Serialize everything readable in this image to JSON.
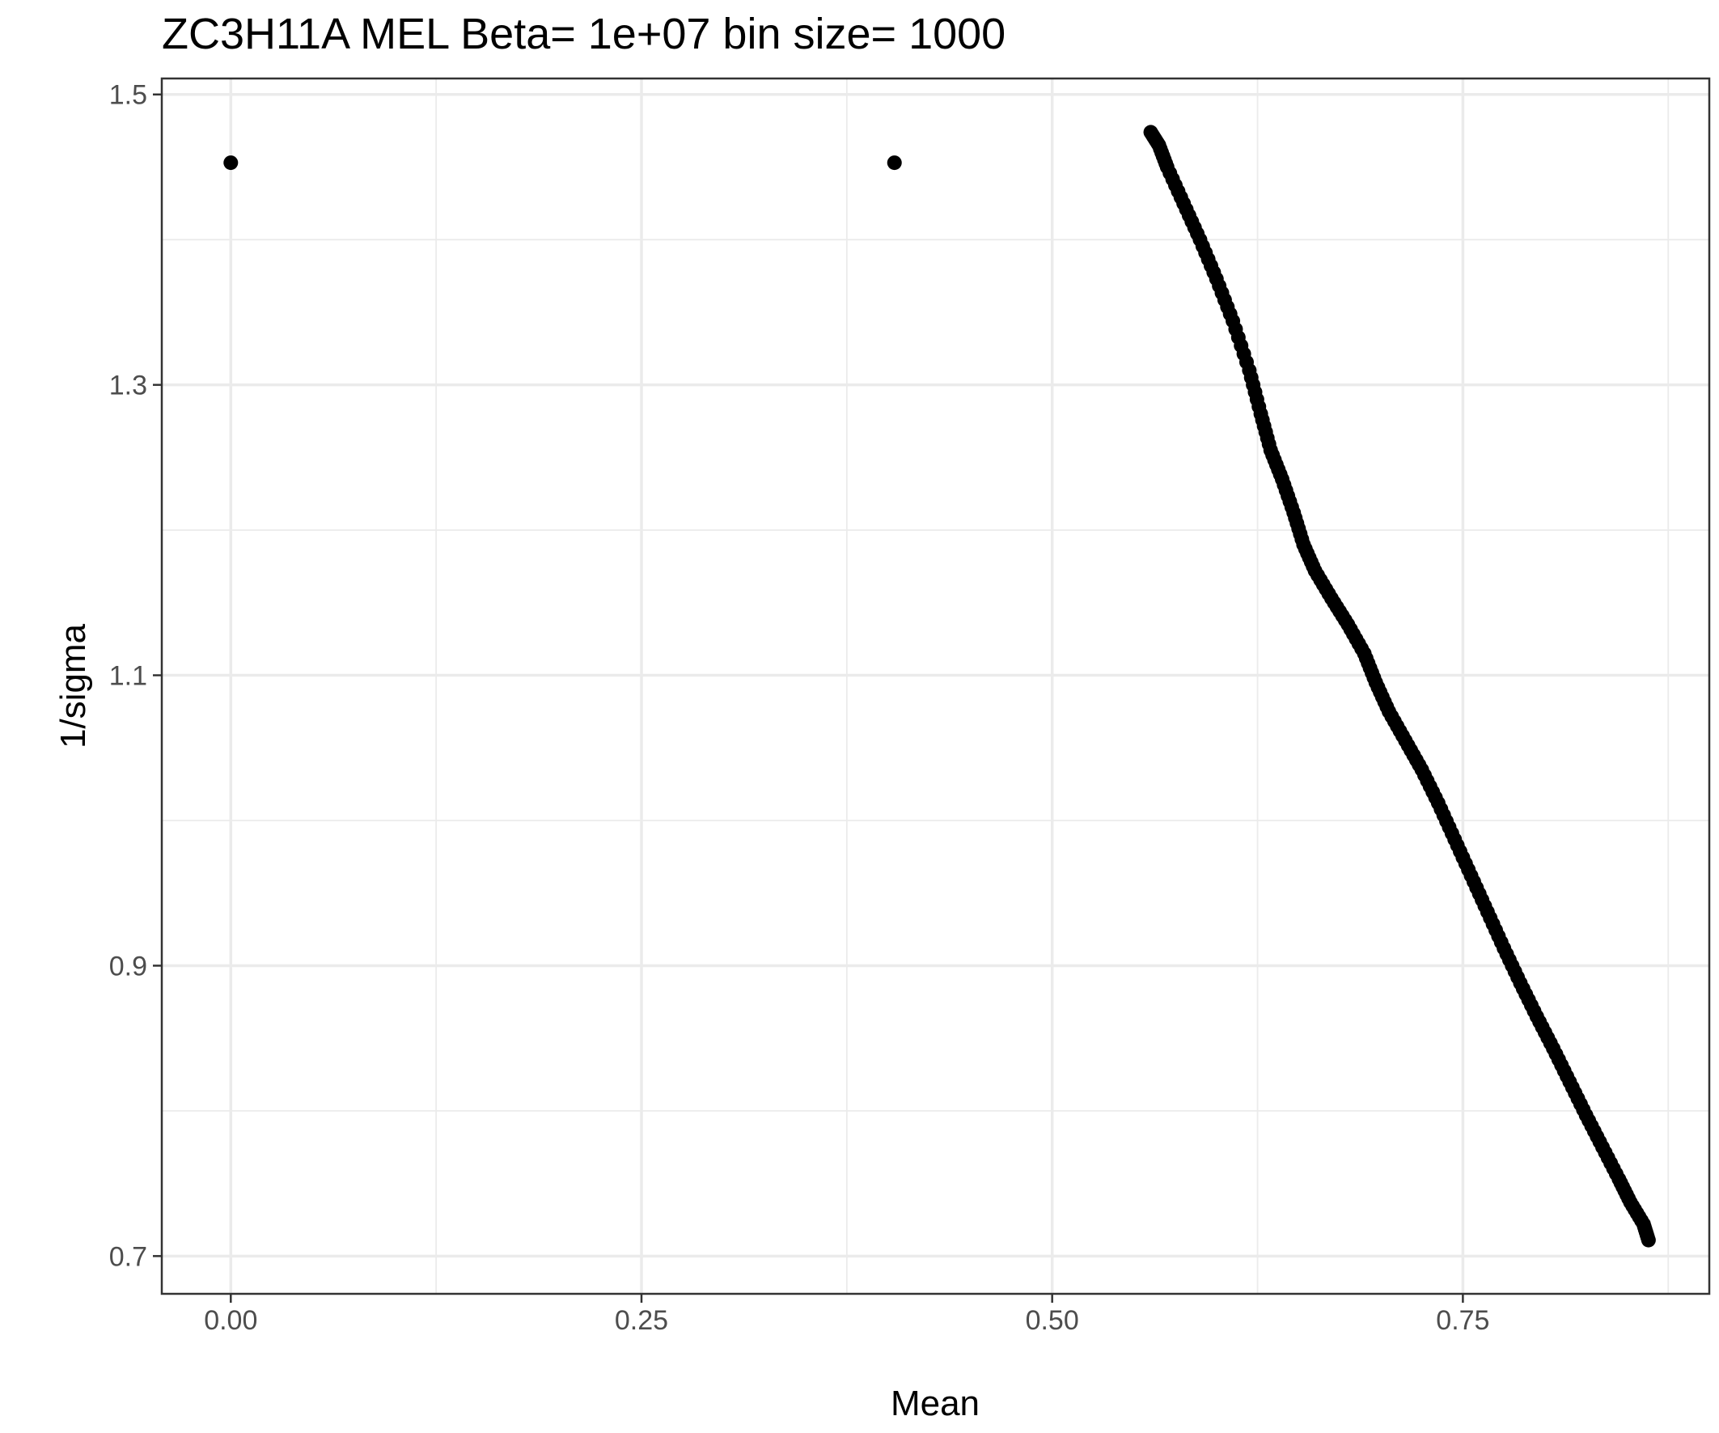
{
  "chart_data": {
    "type": "scatter",
    "title": "ZC3H11A MEL  Beta=  1e+07  bin size=  1000",
    "xlabel": "Mean",
    "ylabel": "1/sigma",
    "xlim": [
      -0.042,
      0.9
    ],
    "ylim": [
      0.674,
      1.511
    ],
    "x_ticks": [
      0.0,
      0.25,
      0.5,
      0.75
    ],
    "x_tick_labels": [
      "0.00",
      "0.25",
      "0.50",
      "0.75"
    ],
    "y_ticks": [
      0.7,
      0.9,
      1.1,
      1.3,
      1.5
    ],
    "y_tick_labels": [
      "0.7",
      "0.9",
      "1.1",
      "1.3",
      "1.5"
    ],
    "grid": true,
    "series": [
      {
        "points": [
          [
            0.0,
            1.453
          ],
          [
            0.404,
            1.453
          ],
          [
            0.56,
            1.474
          ],
          [
            0.565,
            1.465
          ],
          [
            0.57,
            1.45
          ],
          [
            0.58,
            1.425
          ],
          [
            0.59,
            1.4
          ],
          [
            0.6,
            1.373
          ],
          [
            0.61,
            1.344
          ],
          [
            0.62,
            1.31
          ],
          [
            0.627,
            1.28
          ],
          [
            0.633,
            1.255
          ],
          [
            0.64,
            1.235
          ],
          [
            0.647,
            1.212
          ],
          [
            0.653,
            1.19
          ],
          [
            0.66,
            1.172
          ],
          [
            0.67,
            1.153
          ],
          [
            0.68,
            1.135
          ],
          [
            0.69,
            1.115
          ],
          [
            0.697,
            1.095
          ],
          [
            0.705,
            1.075
          ],
          [
            0.715,
            1.055
          ],
          [
            0.725,
            1.035
          ],
          [
            0.735,
            1.012
          ],
          [
            0.745,
            0.987
          ],
          [
            0.755,
            0.962
          ],
          [
            0.765,
            0.937
          ],
          [
            0.775,
            0.912
          ],
          [
            0.785,
            0.888
          ],
          [
            0.795,
            0.865
          ],
          [
            0.805,
            0.843
          ],
          [
            0.815,
            0.82
          ],
          [
            0.825,
            0.797
          ],
          [
            0.835,
            0.775
          ],
          [
            0.845,
            0.753
          ],
          [
            0.852,
            0.737
          ],
          [
            0.86,
            0.722
          ],
          [
            0.863,
            0.711
          ]
        ]
      }
    ]
  }
}
